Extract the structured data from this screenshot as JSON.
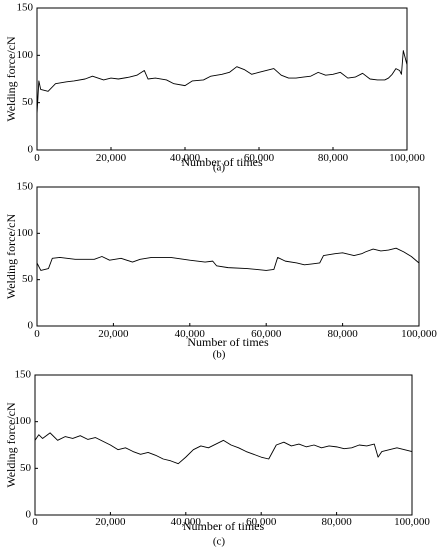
{
  "chart_data": [
    {
      "type": "line",
      "panel_label": "(a)",
      "xlabel": "Number of times",
      "ylabel": "Welding force/cN",
      "xlim": [
        0,
        100000
      ],
      "ylim": [
        0,
        150
      ],
      "x_ticks": [
        0,
        20000,
        40000,
        60000,
        80000,
        100000
      ],
      "x_tick_labels": [
        "0",
        "20,000",
        "40,000",
        "60,000",
        "80,000",
        "100,000"
      ],
      "y_ticks": [
        0,
        50,
        100,
        150
      ],
      "y_tick_labels": [
        "0",
        "50",
        "100",
        "150"
      ],
      "grid": false,
      "series": [
        {
          "color": "#000000",
          "x": [
            0,
            500,
            1000,
            3000,
            5000,
            8000,
            10000,
            13000,
            15000,
            18000,
            20000,
            22000,
            25000,
            27000,
            29000,
            30000,
            32000,
            35000,
            37000,
            40000,
            42000,
            45000,
            47000,
            50000,
            52000,
            54000,
            56000,
            58000,
            60000,
            62000,
            64000,
            66000,
            68000,
            70000,
            72000,
            74000,
            76000,
            78000,
            80000,
            82000,
            84000,
            86000,
            88000,
            90000,
            92000,
            94000,
            95000,
            96000,
            97000,
            98000,
            98500,
            99000,
            100000
          ],
          "y": [
            38,
            73,
            64,
            62,
            70,
            72,
            73,
            75,
            78,
            74,
            76,
            75,
            77,
            79,
            84,
            75,
            76,
            74,
            70,
            68,
            73,
            74,
            78,
            80,
            82,
            88,
            85,
            80,
            82,
            84,
            86,
            79,
            76,
            76,
            77,
            78,
            82,
            79,
            80,
            82,
            76,
            77,
            81,
            75,
            74,
            74,
            76,
            80,
            86,
            84,
            80,
            105,
            90
          ]
        }
      ]
    },
    {
      "type": "line",
      "panel_label": "(b)",
      "xlabel": "Number of times",
      "ylabel": "Welding force/cN",
      "xlim": [
        0,
        100000
      ],
      "ylim": [
        0,
        150
      ],
      "x_ticks": [
        0,
        20000,
        40000,
        60000,
        80000,
        100000
      ],
      "x_tick_labels": [
        "0",
        "20,000",
        "40,000",
        "60,000",
        "80,000",
        "100,000"
      ],
      "y_ticks": [
        0,
        50,
        100,
        150
      ],
      "y_tick_labels": [
        "0",
        "50",
        "100",
        "150"
      ],
      "grid": false,
      "series": [
        {
          "color": "#000000",
          "x": [
            0,
            1000,
            3000,
            4000,
            6000,
            10000,
            15000,
            17000,
            19000,
            22000,
            25000,
            27000,
            30000,
            35000,
            40000,
            44000,
            46000,
            47000,
            50000,
            55000,
            60000,
            62000,
            63000,
            65000,
            68000,
            70000,
            72000,
            74000,
            75000,
            78000,
            80000,
            83000,
            85000,
            86000,
            88000,
            90000,
            92000,
            94000,
            96000,
            98000,
            100000
          ],
          "y": [
            68,
            60,
            62,
            73,
            74,
            72,
            72,
            75,
            71,
            73,
            69,
            72,
            74,
            74,
            71,
            69,
            70,
            65,
            63,
            62,
            60,
            61,
            74,
            70,
            68,
            66,
            67,
            68,
            76,
            78,
            79,
            76,
            78,
            80,
            83,
            81,
            82,
            84,
            80,
            75,
            68
          ]
        }
      ]
    },
    {
      "type": "line",
      "panel_label": "(c)",
      "xlabel": "Number of times",
      "ylabel": "Welding force/cN",
      "xlim": [
        0,
        100000
      ],
      "ylim": [
        0,
        150
      ],
      "x_ticks": [
        0,
        20000,
        40000,
        60000,
        80000,
        100000
      ],
      "x_tick_labels": [
        "0",
        "20,000",
        "40,000",
        "60,000",
        "80,000",
        "100,000"
      ],
      "y_ticks": [
        0,
        50,
        100,
        150
      ],
      "y_tick_labels": [
        "0",
        "50",
        "100",
        "150"
      ],
      "grid": false,
      "series": [
        {
          "color": "#000000",
          "x": [
            0,
            1000,
            2000,
            4000,
            6000,
            8000,
            10000,
            12000,
            14000,
            16000,
            18000,
            20000,
            22000,
            24000,
            26000,
            28000,
            30000,
            32000,
            34000,
            36000,
            38000,
            40000,
            42000,
            44000,
            46000,
            48000,
            50000,
            52000,
            54000,
            56000,
            58000,
            60000,
            62000,
            64000,
            66000,
            68000,
            70000,
            72000,
            74000,
            76000,
            78000,
            80000,
            82000,
            84000,
            86000,
            88000,
            90000,
            91000,
            92000,
            94000,
            96000,
            98000,
            100000
          ],
          "y": [
            80,
            86,
            82,
            88,
            80,
            84,
            82,
            85,
            81,
            83,
            79,
            75,
            70,
            72,
            68,
            65,
            67,
            64,
            60,
            58,
            55,
            62,
            70,
            74,
            72,
            76,
            80,
            75,
            72,
            68,
            65,
            62,
            60,
            75,
            78,
            74,
            76,
            73,
            75,
            72,
            74,
            73,
            71,
            72,
            75,
            74,
            76,
            62,
            68,
            70,
            72,
            70,
            68
          ]
        }
      ]
    }
  ]
}
